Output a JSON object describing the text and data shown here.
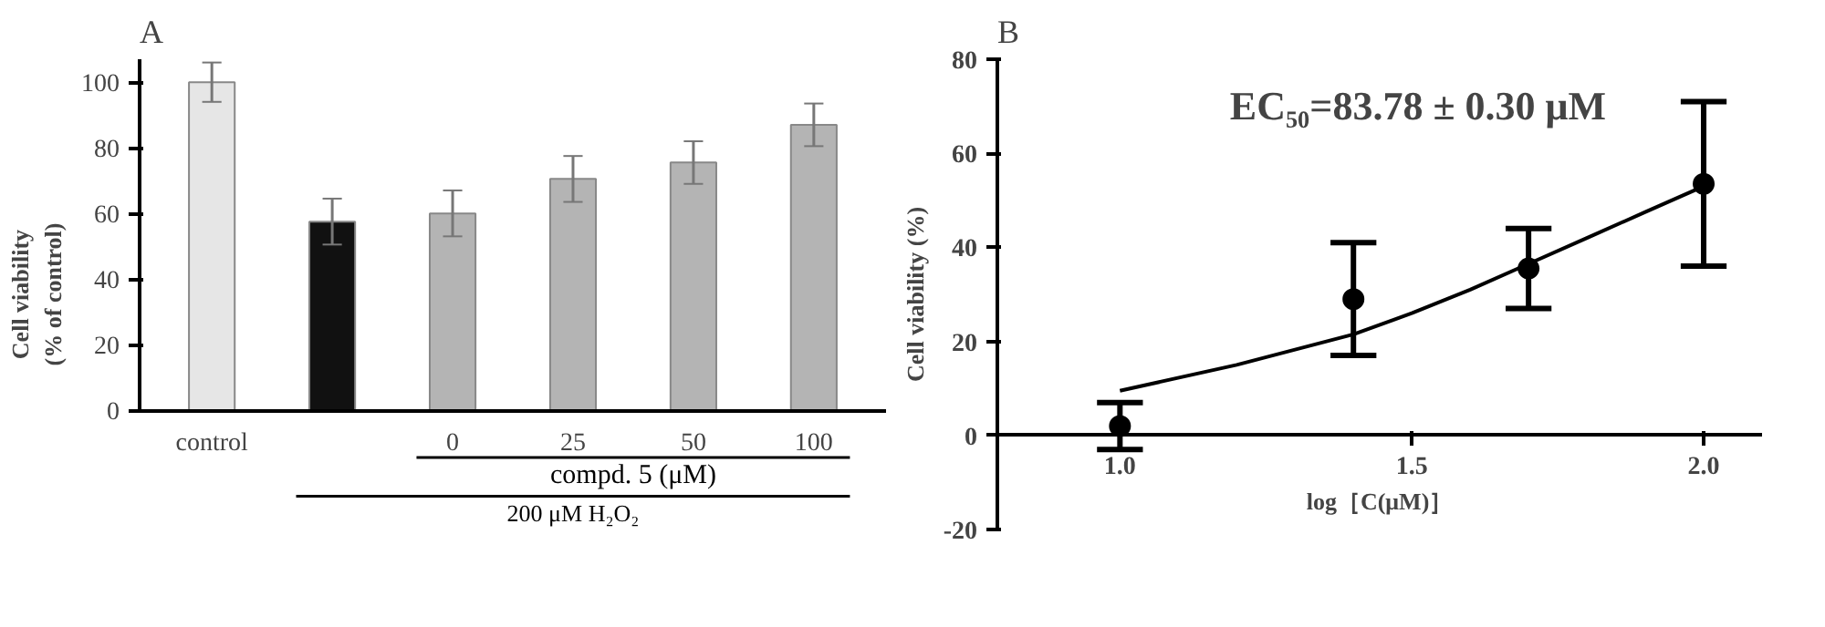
{
  "chart_data": [
    {
      "type": "bar",
      "title": "A",
      "ylabel": "Cell viability\n(% of control)",
      "categories": [
        "control",
        null,
        "0",
        "25",
        "50",
        "100"
      ],
      "values": [
        100,
        57.5,
        60,
        70.5,
        75.5,
        87
      ],
      "colors": [
        "#e6e6e6",
        "#111111",
        "#b4b4b4",
        "#b4b4b4",
        "#b4b4b4",
        "#b4b4b4"
      ],
      "errors": [
        6,
        7,
        7,
        7,
        6.5,
        6.5
      ],
      "ylim": [
        0,
        107
      ],
      "yticks": [
        0,
        20,
        40,
        60,
        80,
        100
      ],
      "annotations": [
        "compd. 5 (μM)",
        "200 μM H₂O₂"
      ]
    },
    {
      "type": "scatter",
      "title": "B",
      "xlabel": "log［C(μM)］",
      "ylabel": "Cell viability (%)",
      "series": [
        {
          "type": "scatter",
          "marker": "circle",
          "color": "#000000",
          "x": [
            1.0,
            1.4,
            1.7,
            2.0
          ],
          "values": [
            2,
            29,
            35.5,
            53.5
          ],
          "errors": [
            5,
            12,
            8.5,
            17.5
          ]
        },
        {
          "type": "line",
          "color": "#000000",
          "x": [
            1.0,
            1.2,
            1.4,
            1.5,
            1.6,
            1.7,
            1.8,
            1.9,
            2.0
          ],
          "values": [
            9.5,
            15,
            21.5,
            26,
            31,
            36.5,
            42,
            47.5,
            53
          ]
        }
      ],
      "xlim": [
        0.79,
        2.1
      ],
      "xticks": [
        {
          "value": 1,
          "label": "1.0"
        },
        {
          "value": 1.5,
          "label": "1.5"
        },
        {
          "value": 2,
          "label": "2.0"
        }
      ],
      "ylim": [
        -20,
        80
      ],
      "yticks": [
        -20,
        0,
        20,
        40,
        60,
        80
      ],
      "annotations": [
        "EC₅₀=83.78 ± 0.30 μM"
      ]
    }
  ]
}
